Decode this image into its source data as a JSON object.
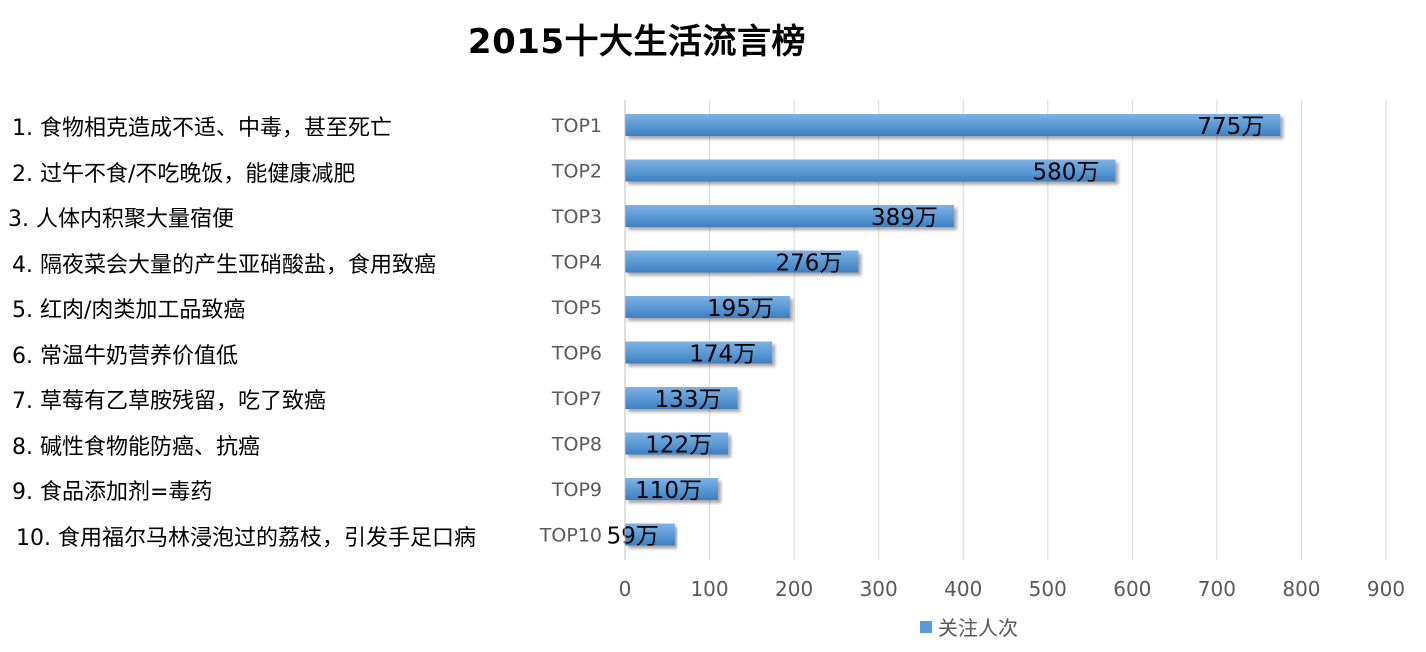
{
  "chart_data": {
    "type": "bar",
    "orientation": "horizontal",
    "title": "2015十大生活流言榜",
    "categories": [
      "TOP1",
      "TOP2",
      "TOP3",
      "TOP4",
      "TOP5",
      "TOP6",
      "TOP7",
      "TOP8",
      "TOP9",
      "TOP10"
    ],
    "items": [
      "1. 食物相克造成不适、中毒，甚至死亡",
      "2. 过午不食/不吃晚饭，能健康减肥",
      "3. 人体内积聚大量宿便",
      "4. 隔夜菜会大量的产生亚硝酸盐，食用致癌",
      "5. 红肉/肉类加工品致癌",
      "6. 常温牛奶营养价值低",
      "7. 草莓有乙草胺残留，吃了致癌",
      "8. 碱性食物能防癌、抗癌",
      "9. 食品添加剂=毒药",
      "10. 食用福尔马林浸泡过的荔枝，引发手足口病"
    ],
    "series": [
      {
        "name": "关注人次",
        "values": [
          775,
          580,
          389,
          276,
          195,
          174,
          133,
          122,
          110,
          59
        ],
        "data_labels": [
          "775万",
          "580万",
          "389万",
          "276万",
          "195万",
          "174万",
          "133万",
          "122万",
          "110万",
          "59万"
        ],
        "color": "#5B9BD5"
      }
    ],
    "xlim": [
      0,
      900
    ],
    "xticks": [
      "0",
      "100",
      "200",
      "300",
      "400",
      "500",
      "600",
      "700",
      "800",
      "900"
    ],
    "grid": true,
    "legend_position": "bottom"
  }
}
